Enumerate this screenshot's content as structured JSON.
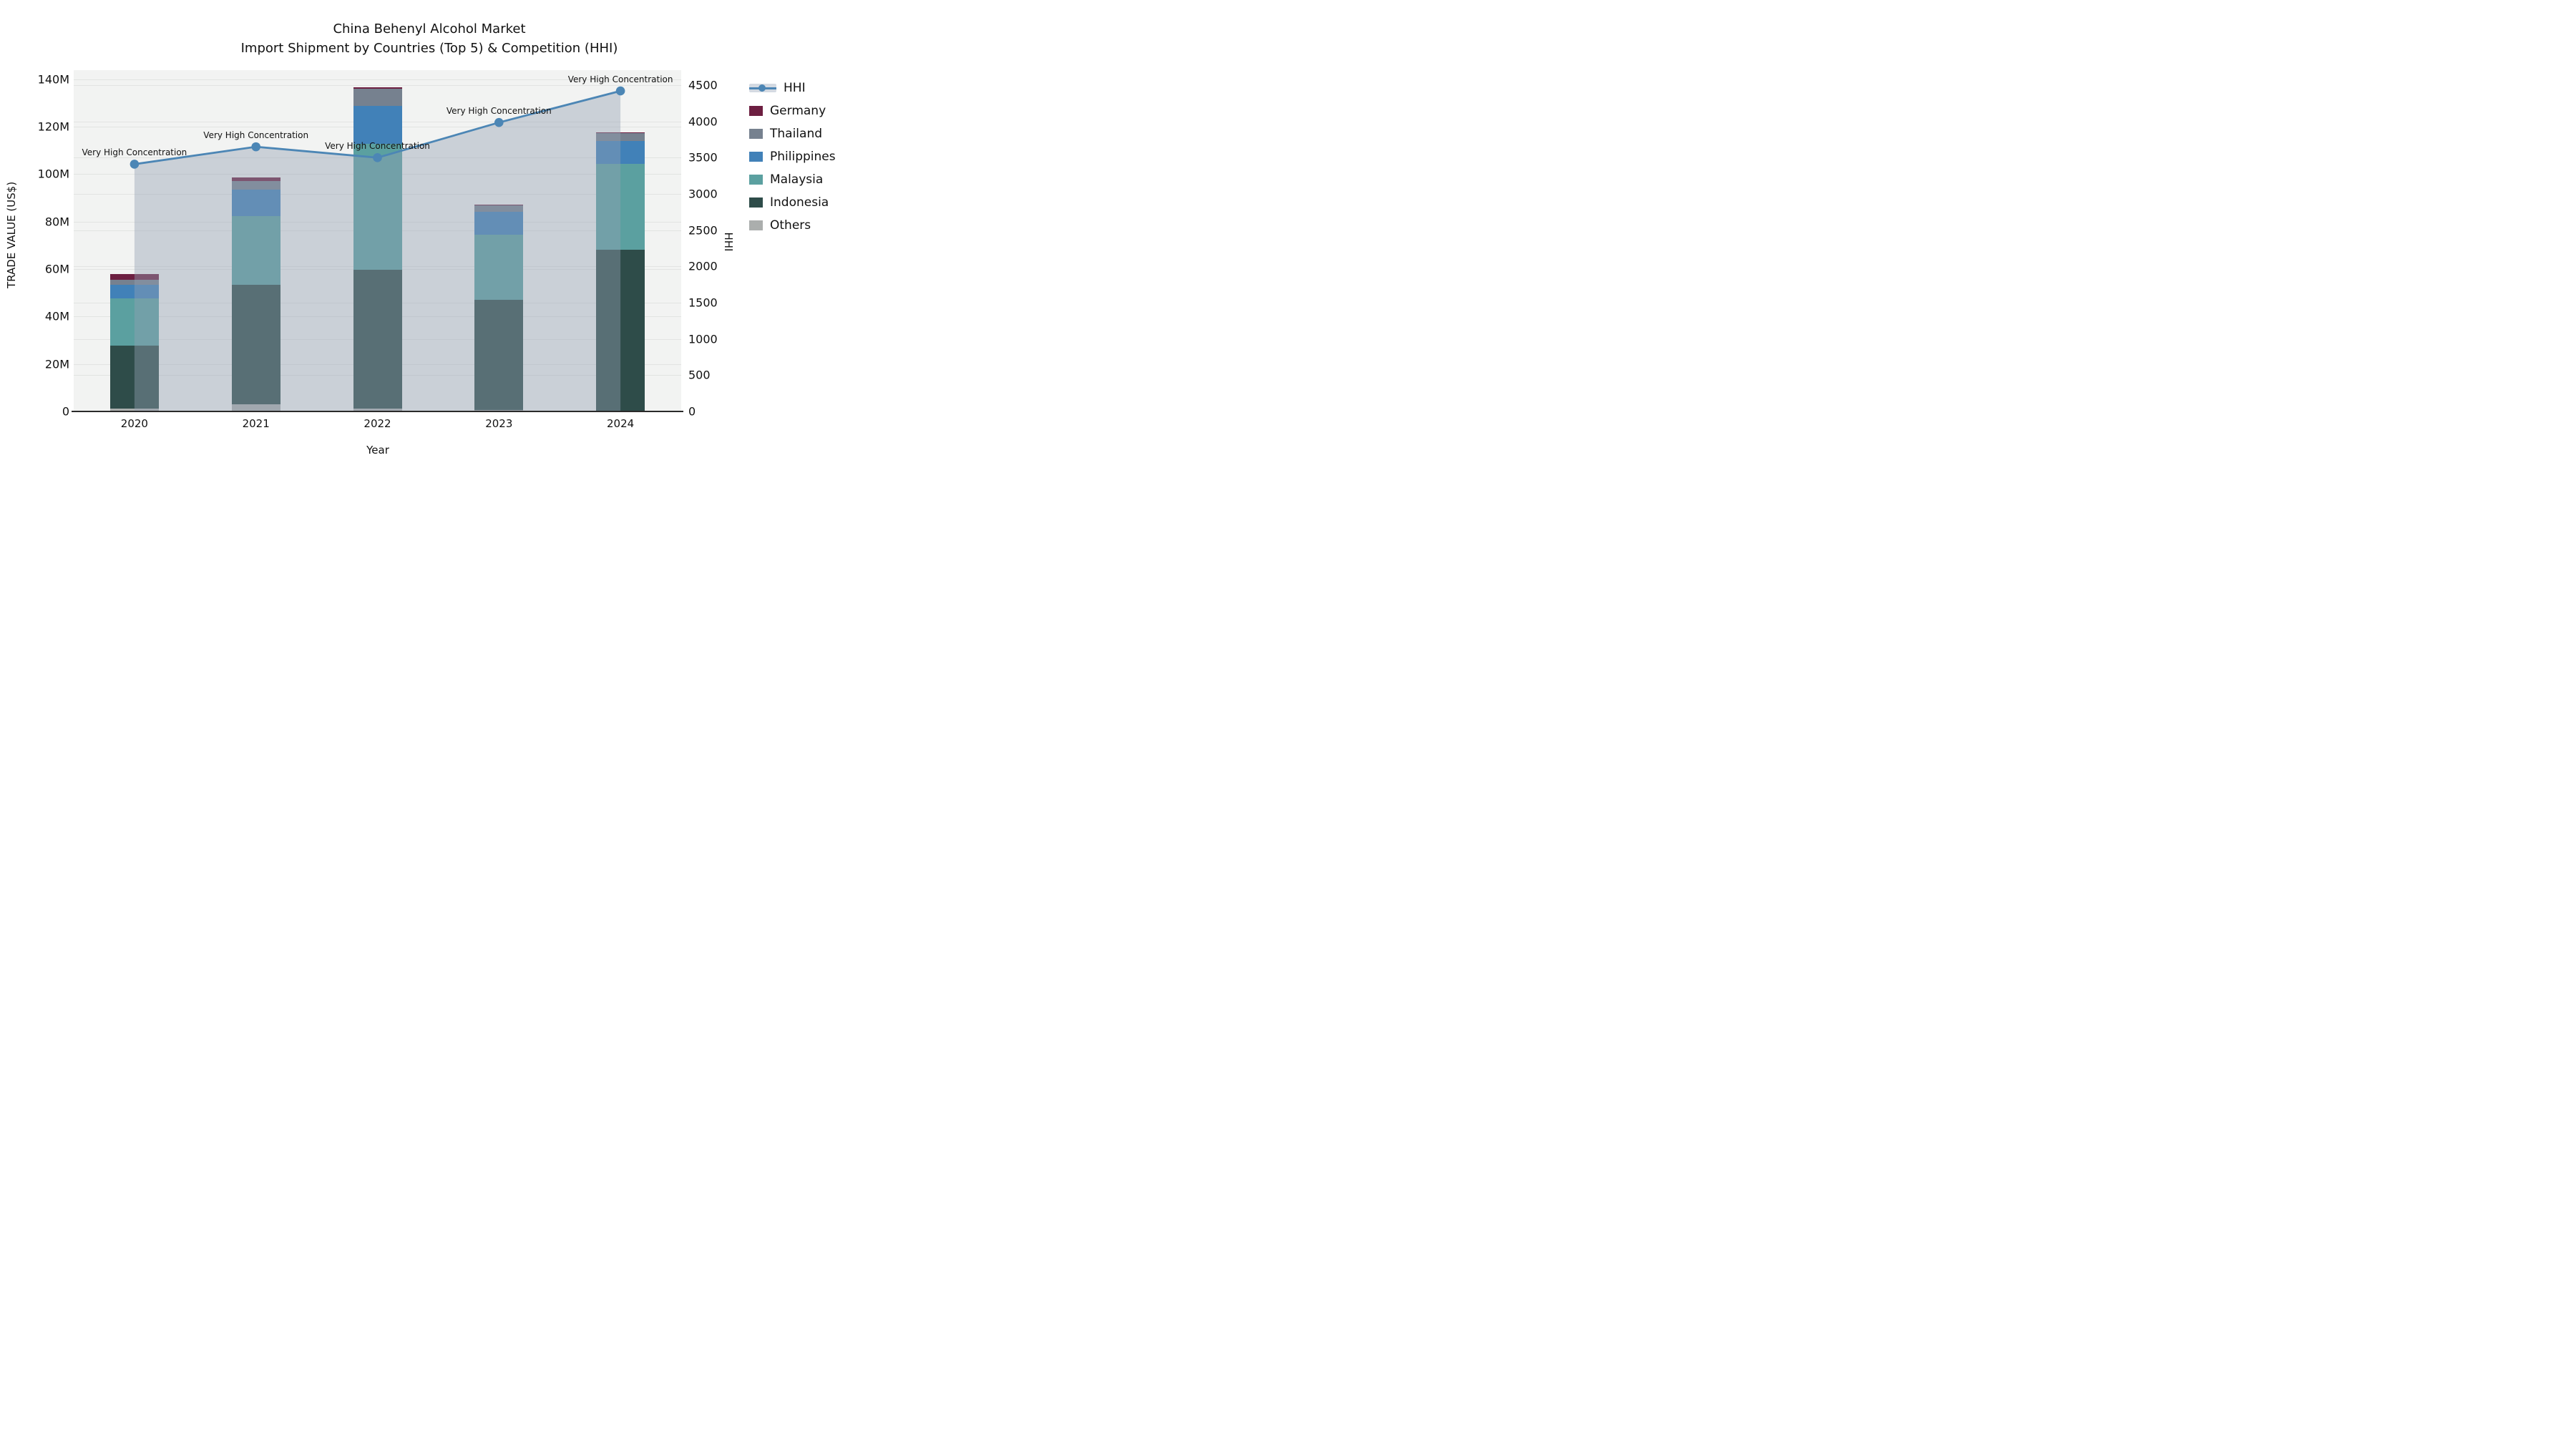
{
  "title": {
    "line1": "China Behenyl Alcohol Market",
    "line2": "Import Shipment by Countries (Top 5) & Competition (HHI)"
  },
  "chart_data": {
    "type": "bar",
    "subtype": "stacked-bars-with-line-on-secondary-axis",
    "categories": [
      "2020",
      "2021",
      "2022",
      "2023",
      "2024"
    ],
    "xlabel": "Year",
    "ylabel_left": "TRADE VALUE (US$)",
    "ylabel_right": "HHI",
    "yticks_left": [
      {
        "value": 0,
        "label": "0"
      },
      {
        "value": 20,
        "label": "20M"
      },
      {
        "value": 40,
        "label": "40M"
      },
      {
        "value": 60,
        "label": "60M"
      },
      {
        "value": 80,
        "label": "80M"
      },
      {
        "value": 100,
        "label": "100M"
      },
      {
        "value": 120,
        "label": "120M"
      },
      {
        "value": 140,
        "label": "140M"
      }
    ],
    "yticks_right": [
      {
        "value": 0,
        "label": "0"
      },
      {
        "value": 500,
        "label": "500"
      },
      {
        "value": 1000,
        "label": "1000"
      },
      {
        "value": 1500,
        "label": "1500"
      },
      {
        "value": 2000,
        "label": "2000"
      },
      {
        "value": 2500,
        "label": "2500"
      },
      {
        "value": 3000,
        "label": "3000"
      },
      {
        "value": 3500,
        "label": "3500"
      },
      {
        "value": 4000,
        "label": "4000"
      },
      {
        "value": 4500,
        "label": "4500"
      }
    ],
    "ylim_left_millions": [
      0,
      143.8
    ],
    "ylim_right": [
      0,
      4707
    ],
    "grid": true,
    "units_note": "bar values in million US$",
    "bar_series_bottom_to_top": [
      {
        "name": "Others",
        "color": "#abaead",
        "values": [
          1.3,
          3.1,
          1.2,
          0.6,
          0.4
        ]
      },
      {
        "name": "Indonesia",
        "color": "#2e4c49",
        "values": [
          26.4,
          50.3,
          58.5,
          46.5,
          67.8
        ]
      },
      {
        "name": "Malaysia",
        "color": "#5ba0a0",
        "values": [
          20.0,
          29.0,
          52.9,
          27.4,
          36.2
        ]
      },
      {
        "name": "Philippines",
        "color": "#4181b8",
        "values": [
          5.8,
          11.2,
          16.1,
          9.5,
          9.5
        ]
      },
      {
        "name": "Thailand",
        "color": "#76818f",
        "values": [
          1.9,
          3.4,
          7.3,
          2.7,
          3.4
        ]
      },
      {
        "name": "Germany",
        "color": "#6d1f41",
        "values": [
          2.4,
          1.6,
          0.5,
          0.3,
          0.4
        ]
      }
    ],
    "bar_totals_millions": [
      57.8,
      98.6,
      136.5,
      87.0,
      117.7
    ],
    "line_series": {
      "name": "HHI",
      "color": "#4c86b5",
      "area_fill": "rgba(148,160,178,0.42)",
      "values": [
        3410,
        3650,
        3500,
        3985,
        4420
      ]
    },
    "annotations": [
      "Very High Concentration",
      "Very High Concentration",
      "Very High Concentration",
      "Very High Concentration",
      "Very High Concentration"
    ],
    "legend_position": "right",
    "legend": [
      {
        "label": "HHI",
        "swatch": "line"
      },
      {
        "label": "Germany",
        "swatch": "#6d1f41"
      },
      {
        "label": "Thailand",
        "swatch": "#76818f"
      },
      {
        "label": "Philippines",
        "swatch": "#4181b8"
      },
      {
        "label": "Malaysia",
        "swatch": "#5ba0a0"
      },
      {
        "label": "Indonesia",
        "swatch": "#2e4c49"
      },
      {
        "label": "Others",
        "swatch": "#abaead"
      }
    ],
    "colors": {
      "plot_background": "#f2f3f2",
      "figure_background": "#ffffff",
      "gridline": "#e2e4e2",
      "axis_line": "#2a2a2a",
      "text": "#111111"
    }
  }
}
